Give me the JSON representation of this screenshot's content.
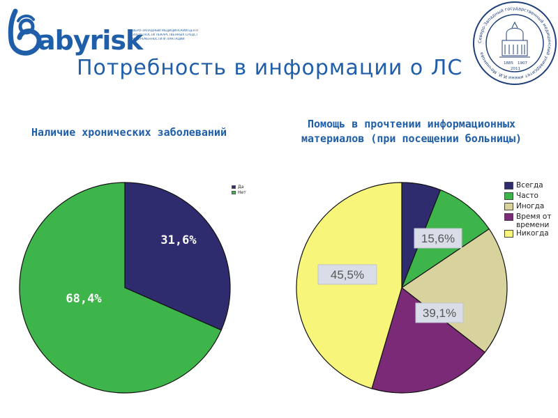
{
  "logo": {
    "text": "abyrisk",
    "caption_lines": [
      "Северо-Западный медицинский центр",
      "безопасности лекарственных средств",
      "при беременности и лактации"
    ]
  },
  "seal": {
    "ring_text": "Северо-Западный государственный медицинский университет имени И.И. Мечникова",
    "years": [
      "1885",
      "1907",
      "2011"
    ]
  },
  "title": "Потребность в информации о ЛС",
  "colors": {
    "navy": "#2e2c6e",
    "green": "#3db54a",
    "beige": "#d8d29d",
    "purple": "#7a2a76",
    "yellow": "#f7f57a",
    "brand_blue": "#1f5ea8"
  },
  "chart_data": [
    {
      "type": "pie",
      "title": "Наличие хронических заболеваний",
      "slices": [
        {
          "name": "Да",
          "value": 31.6,
          "label": "31,6%",
          "color": "#2e2c6e"
        },
        {
          "name": "Нет",
          "value": 68.4,
          "label": "68,4%",
          "color": "#3db54a"
        }
      ],
      "legend": {
        "position": "top-right",
        "entries": [
          "Да",
          "Нет"
        ]
      }
    },
    {
      "type": "pie",
      "title": "Помощь в прочтении информационных материалов (при посещении больницы)",
      "slices": [
        {
          "name": "Всегда",
          "value": 6.0,
          "color": "#2e2c6e"
        },
        {
          "name": "Часто",
          "value": 9.6,
          "color": "#3db54a"
        },
        {
          "name": "Иногда",
          "value": 20.0,
          "color": "#d8d29d"
        },
        {
          "name": "Время от времени",
          "value": 19.1,
          "color": "#7a2a76"
        },
        {
          "name": "Никогда",
          "value": 45.5,
          "color": "#f7f57a"
        }
      ],
      "annotations": [
        "15,6%",
        "39,1%",
        "45,5%"
      ],
      "legend": {
        "position": "right",
        "entries": [
          "Всегда",
          "Часто",
          "Иногда",
          "Время от времени",
          "Никогда"
        ]
      }
    }
  ]
}
